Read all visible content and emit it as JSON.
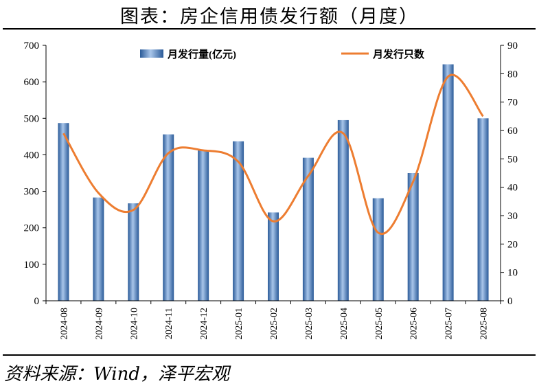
{
  "title": "图表：房企信用债发行额（月度）",
  "source": "资料来源：Wind，泽平宏观",
  "colors": {
    "bar": "#4a7fc1",
    "bar_light": "#a9c6ea",
    "bar_dark": "#2a5a98",
    "line": "#ed7d31",
    "axis": "#000000"
  },
  "chart_data": {
    "type": "bar",
    "categories": [
      "2024-08",
      "2024-09",
      "2024-10",
      "2024-11",
      "2024-12",
      "2025-01",
      "2025-02",
      "2025-03",
      "2025-04",
      "2025-05",
      "2025-06",
      "2025-07",
      "2025-08"
    ],
    "series": [
      {
        "name": "月发行量(亿元)",
        "type": "bar",
        "axis": "left",
        "values": [
          487,
          283,
          267,
          456,
          412,
          437,
          242,
          392,
          495,
          281,
          350,
          648,
          500
        ]
      },
      {
        "name": "月发行只数",
        "type": "line",
        "axis": "right",
        "smooth": true,
        "values": [
          59,
          38,
          32,
          52,
          53,
          49,
          28,
          44,
          59,
          24,
          42,
          79,
          65
        ]
      }
    ],
    "ylim_left": [
      0,
      700
    ],
    "yticks_left": [
      "0",
      "100",
      "200",
      "300",
      "400",
      "500",
      "600",
      "700"
    ],
    "ylim_right": [
      0,
      90
    ],
    "yticks_right": [
      "0",
      "10",
      "20",
      "30",
      "40",
      "50",
      "60",
      "70",
      "80",
      "90"
    ],
    "legend_position": "top",
    "grid": false
  }
}
